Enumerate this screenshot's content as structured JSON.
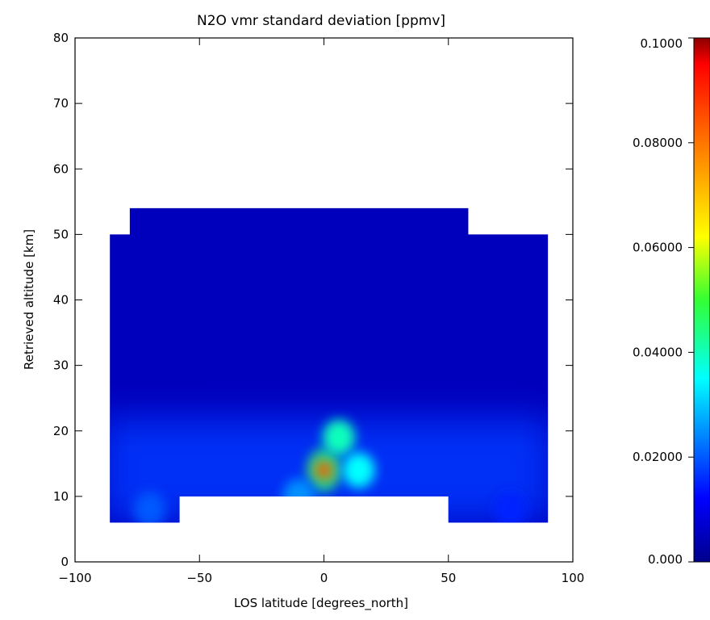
{
  "chart_data": {
    "type": "heatmap",
    "title": "N2O vmr standard deviation [ppmv]",
    "xlabel": "LOS latitude [degrees_north]",
    "ylabel": "Retrieved altitude [km]",
    "xlim": [
      -100,
      100
    ],
    "ylim": [
      0,
      80
    ],
    "x_ticks": [
      -100,
      -50,
      0,
      50,
      100
    ],
    "x_tick_labels": [
      "−100",
      "−50",
      "0",
      "50",
      "100"
    ],
    "y_ticks": [
      0,
      10,
      20,
      30,
      40,
      50,
      60,
      70,
      80
    ],
    "y_tick_labels": [
      "0",
      "10",
      "20",
      "30",
      "40",
      "50",
      "60",
      "70",
      "80"
    ],
    "grid": false,
    "colormap": "rainbow (dark blue to dark red)",
    "colorbar": {
      "range": [
        0.0,
        0.1
      ],
      "ticks": [
        0.0,
        0.02,
        0.04,
        0.06,
        0.08,
        0.1
      ],
      "tick_labels": [
        "0.000",
        "0.02000",
        "0.04000",
        "0.06000",
        "0.08000",
        "0.1000"
      ]
    },
    "data_coverage": [
      {
        "x": [
          -86,
          -58
        ],
        "y": [
          6,
          50
        ]
      },
      {
        "x": [
          -78,
          58
        ],
        "y": [
          10,
          54
        ]
      },
      {
        "x": [
          -58,
          0
        ],
        "y": [
          10,
          54
        ]
      },
      {
        "x": [
          0,
          6
        ],
        "y": [
          14,
          54
        ]
      },
      {
        "x": [
          6,
          14
        ],
        "y": [
          18,
          54
        ]
      },
      {
        "x": [
          14,
          50
        ],
        "y": [
          10,
          54
        ]
      },
      {
        "x": [
          50,
          58
        ],
        "y": [
          6,
          54
        ]
      },
      {
        "x": [
          58,
          90
        ],
        "y": [
          6,
          50
        ]
      }
    ],
    "background_value": 0.005,
    "features": [
      {
        "x": 0,
        "y": 14,
        "value": 0.085
      },
      {
        "x": 6,
        "y": 19,
        "value": 0.04
      },
      {
        "x": 14,
        "y": 14,
        "value": 0.035
      },
      {
        "x": -10,
        "y": 10,
        "value": 0.025
      },
      {
        "x": -70,
        "y": 8,
        "value": 0.02
      },
      {
        "x": 75,
        "y": 8,
        "value": 0.015
      }
    ]
  }
}
